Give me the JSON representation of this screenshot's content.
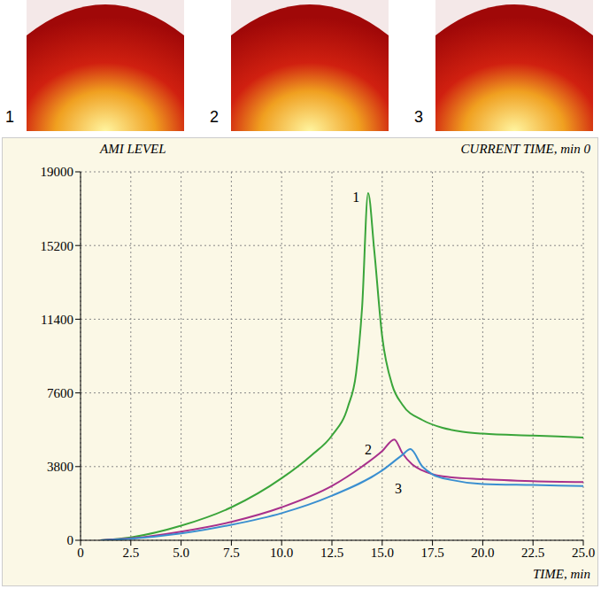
{
  "panels": [
    "1",
    "2",
    "3"
  ],
  "chart_data": {
    "type": "line",
    "y_label": "AMI LEVEL",
    "header_right": "CURRENT TIME, min 0",
    "x_label": "TIME, min",
    "grid": true,
    "xlim": [
      0,
      25
    ],
    "xticks": [
      0,
      2.5,
      {
        "value": 5,
        "label": "5.0"
      },
      7.5,
      {
        "value": 10,
        "label": "10.0"
      },
      12.5,
      {
        "value": 15,
        "label": "15.0"
      },
      17.5,
      {
        "value": 20,
        "label": "20.0"
      },
      22.5,
      {
        "value": 25,
        "label": "25.0"
      }
    ],
    "ylim": [
      0,
      19000
    ],
    "yticks": [
      0,
      3800,
      7600,
      11400,
      15200,
      19000
    ],
    "series": [
      {
        "name": "1",
        "color": "#3aa53a",
        "x": [
          1,
          2.5,
          5,
          7.5,
          10,
          11.5,
          12.5,
          13.3,
          13.7,
          14,
          14.3,
          14.6,
          15,
          15.5,
          16,
          17,
          18,
          19,
          20,
          22.5,
          25
        ],
        "values": [
          0,
          150,
          750,
          1700,
          3200,
          4400,
          5400,
          6900,
          8600,
          12000,
          17900,
          15000,
          10500,
          8000,
          7000,
          6200,
          5800,
          5600,
          5500,
          5400,
          5300
        ]
      },
      {
        "name": "2",
        "color": "#a8308c",
        "x": [
          1,
          2.5,
          5,
          7.5,
          10,
          12.5,
          14,
          15,
          15.6,
          16,
          16.5,
          17,
          18,
          20,
          22.5,
          25
        ],
        "values": [
          0,
          100,
          450,
          950,
          1700,
          2800,
          3800,
          4600,
          5200,
          4500,
          3900,
          3600,
          3300,
          3150,
          3050,
          3000
        ]
      },
      {
        "name": "3",
        "color": "#3a8fd0",
        "x": [
          1,
          2.5,
          5,
          7.5,
          10,
          12.5,
          15,
          16,
          16.4,
          17,
          17.5,
          18.5,
          20,
          22.5,
          25
        ],
        "values": [
          0,
          80,
          350,
          800,
          1400,
          2300,
          3600,
          4400,
          4700,
          3800,
          3400,
          3100,
          2900,
          2850,
          2800
        ]
      }
    ],
    "annotations": [
      {
        "text": "1",
        "x": 13.7,
        "y": 17700
      },
      {
        "text": "2",
        "x": 14.3,
        "y": 4700
      },
      {
        "text": "3",
        "x": 15.8,
        "y": 2700
      }
    ]
  }
}
